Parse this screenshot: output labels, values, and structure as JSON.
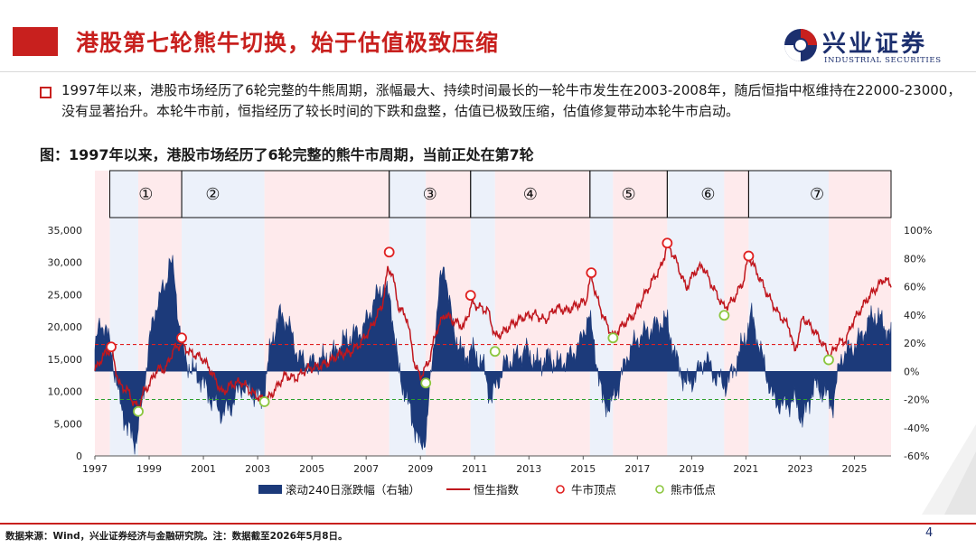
{
  "header": {
    "title": "港股第七轮熊牛切换，始于估值极致压缩",
    "logo_name": "兴业证券",
    "logo_en": "INDUSTRIAL SECURITIES"
  },
  "bullet": {
    "text": "1997年以来，港股市场经历了6轮完整的牛熊周期，涨幅最大、持续时间最长的一轮牛市发生在2003-2008年，随后恒指中枢维持在22000-23000，没有显著抬升。本轮牛市前，恒指经历了较长时间的下跌和盘整，估值已极致压缩，估值修复带动本轮牛市启动。"
  },
  "figure_title": "图：1997年以来，港股市场经历了6轮完整的熊牛市周期，当前正处在第7轮",
  "footer": {
    "source": "数据来源：Wind，兴业证券经济与金融研究院。注：数据截至2026年5月8日。",
    "page": "4"
  },
  "colors": {
    "accent_red": "#c8201e",
    "navy": "#1c3a7a",
    "hsi_line": "#c0171e",
    "bull_shade": "#fde3e6",
    "bear_shade": "#e7eef9",
    "bull_top": "#e02020",
    "bear_bottom": "#8cc63f"
  },
  "chart_data": {
    "type": "line",
    "x_range": [
      1997.0,
      2026.35
    ],
    "x_ticks": [
      "1997",
      "1999",
      "2001",
      "2003",
      "2005",
      "2007",
      "2009",
      "2011",
      "2013",
      "2015",
      "2017",
      "2019",
      "2021",
      "2023",
      "2025"
    ],
    "y_left": {
      "range": [
        0,
        35000
      ],
      "ticks": [
        "0",
        "5,000",
        "10,000",
        "15,000",
        "20,000",
        "25,000",
        "30,000",
        "35,000"
      ]
    },
    "y_right": {
      "range": [
        -60,
        100
      ],
      "ticks": [
        "-60%",
        "-40%",
        "-20%",
        "0%",
        "20%",
        "40%",
        "60%",
        "80%",
        "100%"
      ]
    },
    "reference_lines": [
      {
        "axis": "right",
        "value": 19,
        "color": "#e02020",
        "style": "dashed"
      },
      {
        "axis": "right",
        "value": -20,
        "color": "#2ca02c",
        "style": "dashed"
      }
    ],
    "phases": [
      {
        "start": 1997.0,
        "end": 1997.55,
        "kind": "bull"
      },
      {
        "start": 1997.55,
        "end": 1998.6,
        "kind": "bear"
      },
      {
        "start": 1998.6,
        "end": 2000.2,
        "kind": "bull"
      },
      {
        "start": 2000.2,
        "end": 2003.25,
        "kind": "bear"
      },
      {
        "start": 2003.25,
        "end": 2007.85,
        "kind": "bull"
      },
      {
        "start": 2007.85,
        "end": 2009.2,
        "kind": "bear"
      },
      {
        "start": 2009.2,
        "end": 2010.85,
        "kind": "bull"
      },
      {
        "start": 2010.85,
        "end": 2011.75,
        "kind": "bear"
      },
      {
        "start": 2011.75,
        "end": 2015.25,
        "kind": "bull"
      },
      {
        "start": 2015.25,
        "end": 2016.1,
        "kind": "bear"
      },
      {
        "start": 2016.1,
        "end": 2018.1,
        "kind": "bull"
      },
      {
        "start": 2018.1,
        "end": 2020.2,
        "kind": "bear"
      },
      {
        "start": 2020.2,
        "end": 2021.1,
        "kind": "bull"
      },
      {
        "start": 2021.1,
        "end": 2024.05,
        "kind": "bear"
      },
      {
        "start": 2024.05,
        "end": 2026.35,
        "kind": "bull"
      }
    ],
    "cycles": [
      {
        "label": "①",
        "start": 1997.55,
        "end": 2000.2
      },
      {
        "label": "②",
        "start": 2000.2,
        "end": 2007.85
      },
      {
        "label": "③",
        "start": 2007.85,
        "end": 2010.85
      },
      {
        "label": "④",
        "start": 2010.85,
        "end": 2015.25
      },
      {
        "label": "⑤",
        "start": 2015.25,
        "end": 2018.1
      },
      {
        "label": "⑥",
        "start": 2018.1,
        "end": 2021.1
      },
      {
        "label": "⑦",
        "start": 2021.1,
        "end": 2026.35
      }
    ],
    "series": [
      {
        "name": "恒生指数",
        "axis": "left",
        "x": [
          1997.0,
          1997.3,
          1997.6,
          1997.9,
          1998.2,
          1998.4,
          1998.6,
          1998.8,
          1999.0,
          1999.3,
          1999.6,
          1999.9,
          2000.2,
          2000.5,
          2000.8,
          2001.0,
          2001.3,
          2001.7,
          2002.0,
          2002.4,
          2002.8,
          2003.1,
          2003.3,
          2003.6,
          2004.0,
          2004.4,
          2004.8,
          2005.2,
          2005.6,
          2006.0,
          2006.4,
          2006.8,
          2007.2,
          2007.6,
          2007.8,
          2007.95,
          2008.2,
          2008.5,
          2008.8,
          2009.0,
          2009.3,
          2009.6,
          2009.9,
          2010.2,
          2010.6,
          2010.9,
          2011.2,
          2011.5,
          2011.75,
          2012.0,
          2012.4,
          2012.8,
          2013.2,
          2013.6,
          2014.0,
          2014.4,
          2014.8,
          2015.1,
          2015.3,
          2015.5,
          2015.8,
          2016.1,
          2016.5,
          2016.9,
          2017.2,
          2017.6,
          2017.9,
          2018.1,
          2018.4,
          2018.8,
          2019.1,
          2019.4,
          2019.8,
          2020.2,
          2020.5,
          2020.9,
          2021.1,
          2021.4,
          2021.8,
          2022.2,
          2022.6,
          2022.8,
          2023.1,
          2023.5,
          2023.9,
          2024.1,
          2024.4,
          2024.7,
          2024.9,
          2025.2,
          2025.5,
          2025.8,
          2026.1,
          2026.35
        ],
        "values": [
          13200,
          15500,
          16700,
          11000,
          10200,
          8500,
          7400,
          10000,
          11000,
          13500,
          13400,
          16500,
          17400,
          16000,
          15500,
          15000,
          13000,
          9700,
          11000,
          11500,
          9800,
          8900,
          8500,
          10000,
          12500,
          12000,
          13500,
          13800,
          14500,
          15800,
          16000,
          17500,
          20000,
          23500,
          29000,
          28500,
          23000,
          21500,
          14000,
          12300,
          14500,
          19500,
          22000,
          21000,
          20000,
          23700,
          23000,
          22500,
          18500,
          19000,
          20500,
          21500,
          22000,
          21000,
          23000,
          22500,
          23500,
          24000,
          28000,
          24500,
          21000,
          18500,
          20500,
          22000,
          24500,
          27500,
          29500,
          33000,
          30500,
          26000,
          28500,
          29500,
          26000,
          23000,
          24000,
          27000,
          31000,
          28500,
          25000,
          22000,
          20000,
          16000,
          21500,
          19500,
          17000,
          15500,
          17500,
          18000,
          20500,
          22500,
          24500,
          26000,
          27500,
          26500
        ]
      },
      {
        "name": "滚动240日涨跌幅（右轴）",
        "axis": "right",
        "x": [
          1997.0,
          1997.2,
          1997.4,
          1997.6,
          1997.9,
          1998.2,
          1998.5,
          1998.7,
          1999.0,
          1999.3,
          1999.6,
          1999.75,
          1999.9,
          2000.1,
          2000.3,
          2000.6,
          2000.9,
          2001.3,
          2001.7,
          2002.0,
          2002.4,
          2002.8,
          2003.2,
          2003.5,
          2003.8,
          2004.1,
          2004.5,
          2004.9,
          2005.3,
          2005.7,
          2006.1,
          2006.5,
          2006.9,
          2007.3,
          2007.6,
          2007.9,
          2008.2,
          2008.5,
          2008.8,
          2009.0,
          2009.2,
          2009.5,
          2009.7,
          2009.9,
          2010.2,
          2010.6,
          2010.9,
          2011.3,
          2011.6,
          2011.8,
          2012.1,
          2012.5,
          2012.9,
          2013.3,
          2013.7,
          2014.1,
          2014.5,
          2014.9,
          2015.2,
          2015.4,
          2015.7,
          2016.0,
          2016.3,
          2016.7,
          2017.1,
          2017.5,
          2017.9,
          2018.1,
          2018.4,
          2018.8,
          2019.1,
          2019.5,
          2019.9,
          2020.3,
          2020.7,
          2021.0,
          2021.2,
          2021.6,
          2022.0,
          2022.4,
          2022.8,
          2023.1,
          2023.5,
          2023.9,
          2024.2,
          2024.5,
          2024.8,
          2025.1,
          2025.4,
          2025.7,
          2026.0,
          2026.35
        ],
        "values": [
          15,
          35,
          30,
          15,
          -20,
          -40,
          -50,
          -30,
          20,
          50,
          60,
          80,
          70,
          35,
          10,
          0,
          -5,
          -20,
          -30,
          -25,
          -10,
          -15,
          -20,
          20,
          40,
          35,
          10,
          5,
          8,
          10,
          20,
          25,
          30,
          50,
          60,
          50,
          0,
          -20,
          -40,
          -55,
          -45,
          20,
          60,
          75,
          30,
          10,
          15,
          5,
          -20,
          -10,
          5,
          10,
          15,
          5,
          10,
          5,
          10,
          20,
          40,
          20,
          -20,
          -25,
          -10,
          15,
          25,
          30,
          35,
          35,
          10,
          -10,
          -5,
          10,
          -5,
          -10,
          10,
          25,
          40,
          10,
          -20,
          -25,
          -20,
          -35,
          -10,
          -15,
          -25,
          10,
          15,
          20,
          30,
          40,
          35,
          25
        ]
      }
    ],
    "bull_tops": [
      {
        "x": 1997.6,
        "y": 16900
      },
      {
        "x": 2000.2,
        "y": 18300
      },
      {
        "x": 2007.85,
        "y": 31600
      },
      {
        "x": 2010.85,
        "y": 24900
      },
      {
        "x": 2015.3,
        "y": 28400
      },
      {
        "x": 2018.1,
        "y": 33000
      },
      {
        "x": 2021.1,
        "y": 31000
      }
    ],
    "bear_bottoms": [
      {
        "x": 1998.6,
        "y": 6900
      },
      {
        "x": 2003.25,
        "y": 8400
      },
      {
        "x": 2009.2,
        "y": 11300
      },
      {
        "x": 2011.75,
        "y": 16200
      },
      {
        "x": 2016.1,
        "y": 18300
      },
      {
        "x": 2020.2,
        "y": 21800
      },
      {
        "x": 2024.05,
        "y": 14900
      }
    ],
    "legend": {
      "placement": "bottom",
      "items": [
        "滚动240日涨跌幅（右轴）",
        "恒生指数",
        "牛市顶点",
        "熊市低点"
      ]
    }
  }
}
